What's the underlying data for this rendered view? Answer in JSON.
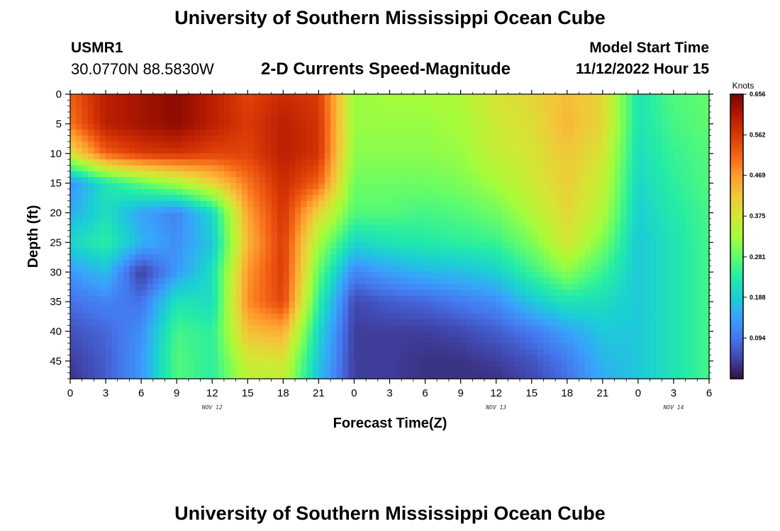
{
  "header": {
    "title": "University of Southern Mississippi Ocean Cube",
    "station": "USMR1",
    "coords": "30.0770N  88.5830W",
    "subtitle": "2-D Currents Speed-Magnitude",
    "start_label": "Model Start Time",
    "start_time": "11/12/2022 Hour 15",
    "title_repeat": "University of Southern Mississippi Ocean Cube"
  },
  "chart_data": {
    "type": "heatmap",
    "title": "2-D Currents Speed-Magnitude",
    "xlabel": "Forecast Time(Z)",
    "ylabel": "Depth (ft)",
    "x_hours": [
      0,
      54
    ],
    "x_tick_hours": [
      0,
      3,
      6,
      9,
      12,
      15,
      18,
      21,
      24,
      27,
      30,
      33,
      36,
      39,
      42,
      45,
      48,
      51,
      54
    ],
    "x_tick_labels": [
      "0",
      "3",
      "6",
      "9",
      "12",
      "15",
      "18",
      "21",
      "0",
      "3",
      "6",
      "9",
      "12",
      "15",
      "18",
      "21",
      "0",
      "3",
      "6"
    ],
    "date_labels": [
      {
        "hour": 12,
        "label": "NOV 12"
      },
      {
        "hour": 36,
        "label": "NOV 13"
      },
      {
        "hour": 51,
        "label": "NOV 14"
      }
    ],
    "ylim": [
      0,
      48
    ],
    "y_ticks": [
      0,
      5,
      10,
      15,
      20,
      25,
      30,
      35,
      40,
      45
    ],
    "colorbar": {
      "unit": "Knots",
      "range": [
        0,
        0.656
      ],
      "tick_values": [
        0.656,
        0.562,
        0.469,
        0.375,
        0.281,
        0.188,
        0.094
      ],
      "tick_labels": [
        "0.656",
        "0.562",
        "0.469",
        "0.375",
        "0.281",
        "0.188",
        "0.094"
      ],
      "colors": [
        "#30123b",
        "#4145ab",
        "#4675ed",
        "#39a2fc",
        "#1bcfd4",
        "#24eca6",
        "#61fc6c",
        "#a4fc3b",
        "#d1e834",
        "#f3c63a",
        "#fe9b2d",
        "#f36315",
        "#d93806",
        "#b11901",
        "#7a0402"
      ]
    },
    "depths_ft": [
      0,
      5,
      10,
      15,
      20,
      25,
      30,
      35,
      40,
      45,
      48
    ],
    "hour_columns": [
      0,
      3,
      6,
      9,
      12,
      15,
      18,
      21,
      24,
      27,
      30,
      33,
      36,
      39,
      42,
      45,
      48,
      51,
      54
    ],
    "speed_knots": [
      [
        0.52,
        0.6,
        0.62,
        0.64,
        0.6,
        0.55,
        0.58,
        0.56,
        0.32,
        0.33,
        0.33,
        0.34,
        0.38,
        0.4,
        0.43,
        0.4,
        0.22,
        0.27,
        0.28
      ],
      [
        0.5,
        0.6,
        0.62,
        0.64,
        0.6,
        0.56,
        0.6,
        0.57,
        0.32,
        0.32,
        0.32,
        0.33,
        0.37,
        0.39,
        0.44,
        0.4,
        0.22,
        0.26,
        0.28
      ],
      [
        0.38,
        0.52,
        0.56,
        0.57,
        0.55,
        0.55,
        0.6,
        0.57,
        0.31,
        0.31,
        0.31,
        0.32,
        0.36,
        0.38,
        0.42,
        0.38,
        0.21,
        0.25,
        0.27
      ],
      [
        0.12,
        0.22,
        0.28,
        0.33,
        0.4,
        0.5,
        0.58,
        0.52,
        0.29,
        0.29,
        0.29,
        0.3,
        0.33,
        0.37,
        0.41,
        0.36,
        0.2,
        0.24,
        0.27
      ],
      [
        0.15,
        0.21,
        0.14,
        0.11,
        0.2,
        0.46,
        0.57,
        0.4,
        0.27,
        0.27,
        0.26,
        0.27,
        0.29,
        0.34,
        0.4,
        0.34,
        0.19,
        0.23,
        0.26
      ],
      [
        0.2,
        0.24,
        0.16,
        0.12,
        0.18,
        0.44,
        0.56,
        0.33,
        0.2,
        0.22,
        0.23,
        0.24,
        0.25,
        0.3,
        0.38,
        0.3,
        0.18,
        0.22,
        0.26
      ],
      [
        0.13,
        0.17,
        0.04,
        0.13,
        0.21,
        0.47,
        0.56,
        0.28,
        0.11,
        0.14,
        0.16,
        0.17,
        0.19,
        0.25,
        0.31,
        0.25,
        0.18,
        0.22,
        0.26
      ],
      [
        0.09,
        0.11,
        0.09,
        0.22,
        0.21,
        0.48,
        0.55,
        0.24,
        0.05,
        0.07,
        0.08,
        0.1,
        0.12,
        0.18,
        0.22,
        0.21,
        0.18,
        0.22,
        0.26
      ],
      [
        0.06,
        0.08,
        0.12,
        0.26,
        0.24,
        0.43,
        0.45,
        0.2,
        0.04,
        0.04,
        0.04,
        0.05,
        0.07,
        0.1,
        0.14,
        0.18,
        0.18,
        0.22,
        0.26
      ],
      [
        0.04,
        0.07,
        0.13,
        0.27,
        0.24,
        0.37,
        0.38,
        0.18,
        0.04,
        0.04,
        0.03,
        0.03,
        0.04,
        0.06,
        0.1,
        0.16,
        0.18,
        0.22,
        0.26
      ],
      [
        0.03,
        0.07,
        0.13,
        0.27,
        0.24,
        0.35,
        0.36,
        0.17,
        0.04,
        0.04,
        0.03,
        0.03,
        0.03,
        0.05,
        0.09,
        0.15,
        0.18,
        0.22,
        0.26
      ]
    ]
  }
}
